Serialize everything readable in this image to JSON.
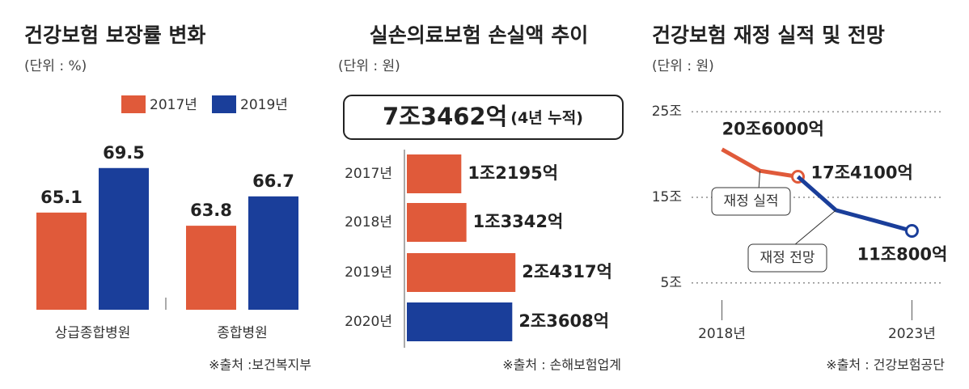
{
  "chart_data": [
    {
      "type": "grouped-bar",
      "title": "건강보험 보장률 변화",
      "unit": "(단위 : %)",
      "categories": [
        "상급종합병원",
        "종합병원"
      ],
      "series": [
        {
          "name": "2017년",
          "color": "#e05a3a",
          "values": [
            65.1,
            63.8
          ]
        },
        {
          "name": "2019년",
          "color": "#1a3e9a",
          "values": [
            69.5,
            66.7
          ]
        }
      ],
      "ylim": [
        55.5,
        71
      ],
      "source": "※출처 :보건복지부"
    },
    {
      "type": "hbar",
      "title": "실손의료보험 손실액 추이",
      "unit": "(단위 : 원)",
      "total": {
        "value": 7346200000000,
        "label": "7조3462억"
      },
      "total_note": "(4년 누적)",
      "categories": [
        "2017년",
        "2018년",
        "2019년",
        "2020년"
      ],
      "values": [
        1219500000000,
        1334200000000,
        2431700000000,
        2360800000000
      ],
      "value_labels": [
        "1조2195억",
        "1조3342억",
        "2조4317억",
        "2조3608억"
      ],
      "colors": [
        "#e05a3a",
        "#e05a3a",
        "#e05a3a",
        "#1a3e9a"
      ],
      "xlim": [
        0,
        2500000000000
      ],
      "source": "※출처 : 손해보험업계"
    },
    {
      "type": "line",
      "title": "건강보험 재정 실적 및 전망",
      "unit": "(단위 : 원)",
      "x": [
        2018,
        2019,
        2020,
        2021,
        2022,
        2023
      ],
      "series": [
        {
          "name": "재정 실적",
          "color": "#e05a3a",
          "values": [
            20600000000000,
            18100000000000,
            17410000000000,
            null,
            null,
            null
          ],
          "value_labels": [
            "20조6000억",
            null,
            "17조4100억",
            null,
            null,
            null
          ]
        },
        {
          "name": "재정 전망",
          "color": "#1a3e9a",
          "values": [
            null,
            null,
            17410000000000,
            13500000000000,
            12300000000000,
            11080000000000
          ],
          "value_labels": [
            null,
            null,
            null,
            null,
            null,
            "11조800억"
          ]
        }
      ],
      "xlim": [
        2017.2,
        2023.8
      ],
      "xticks": [
        {
          "value": 2018,
          "label": "2018년"
        },
        {
          "value": 2023,
          "label": "2023년"
        }
      ],
      "ylim": [
        3000000000000,
        27000000000000
      ],
      "yticks": [
        {
          "value": 5000000000000,
          "label": "5조"
        },
        {
          "value": 15000000000000,
          "label": "15조"
        },
        {
          "value": 25000000000000,
          "label": "25조"
        }
      ],
      "grid": true,
      "source": "※출처 : 건강보험공단"
    }
  ]
}
